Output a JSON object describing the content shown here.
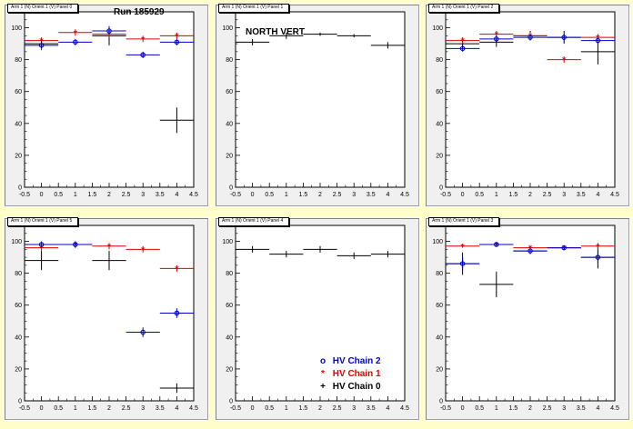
{
  "run_label": "Run 185929",
  "north_vert_label": "NORTH VERT",
  "colors": {
    "chain2": "#0000cc",
    "chain1": "#dd0000",
    "chain0": "#000000",
    "background": "#ffffcc"
  },
  "legend": [
    {
      "label": "HV Chain 2",
      "symbol": "o",
      "color": "#0000cc"
    },
    {
      "label": "HV Chain 1",
      "symbol": "*",
      "color": "#dd0000"
    },
    {
      "label": "HV Chain 0",
      "symbol": "+",
      "color": "#000000"
    }
  ],
  "chart_data": [
    {
      "type": "scatter",
      "title": "Arm 1 (N) Orient 1 (V) Panel 0",
      "xlim": [
        -0.5,
        4.5
      ],
      "ylim": [
        0,
        110
      ],
      "xticks": [
        "-0.5",
        "0",
        "0.5",
        "1",
        "1.5",
        "2",
        "2.5",
        "3",
        "3.5",
        "4",
        "4.5"
      ],
      "yticks": [
        "0",
        "20",
        "40",
        "60",
        "80",
        "100"
      ],
      "series": [
        {
          "name": "HV Chain 2",
          "x": [
            0,
            1,
            2,
            3,
            4
          ],
          "y": [
            89,
            91,
            98,
            83,
            91
          ],
          "yerr": [
            3,
            2,
            2,
            2,
            2
          ]
        },
        {
          "name": "HV Chain 1",
          "x": [
            0,
            1,
            2,
            3,
            4
          ],
          "y": [
            92,
            97,
            96,
            93,
            95
          ],
          "yerr": [
            2,
            2,
            2,
            2,
            2
          ]
        },
        {
          "name": "HV Chain 0",
          "x": [
            0,
            2,
            4
          ],
          "y": [
            90,
            95,
            42
          ],
          "yerr": [
            3,
            6,
            8
          ]
        }
      ]
    },
    {
      "type": "scatter",
      "title": "Arm 1 (N) Orient 1 (V) Panel 1",
      "xlim": [
        -0.5,
        4.5
      ],
      "ylim": [
        0,
        110
      ],
      "xticks": [
        "-0.5",
        "0",
        "0.5",
        "1",
        "1.5",
        "2",
        "2.5",
        "3",
        "3.5",
        "4",
        "4.5"
      ],
      "yticks": [
        "0",
        "20",
        "40",
        "60",
        "80",
        "100"
      ],
      "series": [
        {
          "name": "HV Chain 0",
          "x": [
            0,
            1,
            2,
            3,
            4
          ],
          "y": [
            91,
            95,
            96,
            95,
            89
          ],
          "yerr": [
            2,
            2,
            1,
            1,
            2
          ]
        }
      ]
    },
    {
      "type": "scatter",
      "title": "Arm 1 (N) Orient 1 (V) Panel 2",
      "xlim": [
        -0.5,
        4.5
      ],
      "ylim": [
        0,
        110
      ],
      "xticks": [
        "-0.5",
        "0",
        "0.5",
        "1",
        "1.5",
        "2",
        "2.5",
        "3",
        "3.5",
        "4",
        "4.5"
      ],
      "yticks": [
        "0",
        "20",
        "40",
        "60",
        "80",
        "100"
      ],
      "series": [
        {
          "name": "HV Chain 2",
          "x": [
            0,
            1,
            2,
            3,
            4
          ],
          "y": [
            87,
            93,
            94,
            94,
            92
          ],
          "yerr": [
            2,
            2,
            2,
            2,
            2
          ]
        },
        {
          "name": "HV Chain 1",
          "x": [
            0,
            1,
            2,
            3,
            4
          ],
          "y": [
            92,
            96,
            95,
            80,
            94
          ],
          "yerr": [
            2,
            2,
            2,
            2,
            2
          ]
        },
        {
          "name": "HV Chain 0",
          "x": [
            0,
            1,
            2,
            3,
            4
          ],
          "y": [
            90,
            91,
            95,
            94,
            85
          ],
          "yerr": [
            3,
            3,
            3,
            4,
            8
          ]
        }
      ]
    },
    {
      "type": "scatter",
      "title": "Arm 1 (N) Orient 1 (V) Panel 5",
      "xlim": [
        -0.5,
        4.5
      ],
      "ylim": [
        0,
        110
      ],
      "xticks": [
        "-0.5",
        "0",
        "0.5",
        "1",
        "1.5",
        "2",
        "2.5",
        "3",
        "3.5",
        "4",
        "4.5"
      ],
      "yticks": [
        "0",
        "20",
        "40",
        "60",
        "80",
        "100"
      ],
      "series": [
        {
          "name": "HV Chain 2",
          "x": [
            0,
            1,
            3,
            4
          ],
          "y": [
            98,
            98,
            43,
            55
          ],
          "yerr": [
            2,
            2,
            3,
            3
          ]
        },
        {
          "name": "HV Chain 1",
          "x": [
            0,
            1,
            2,
            3,
            4
          ],
          "y": [
            96,
            98,
            97,
            95,
            83
          ],
          "yerr": [
            2,
            2,
            2,
            2,
            2
          ]
        },
        {
          "name": "HV Chain 0",
          "x": [
            0,
            2,
            4
          ],
          "y": [
            88,
            88,
            8
          ],
          "yerr": [
            6,
            6,
            3
          ]
        }
      ]
    },
    {
      "type": "scatter",
      "title": "Arm 1 (N) Orient 1 (V) Panel 4",
      "xlim": [
        -0.5,
        4.5
      ],
      "ylim": [
        0,
        110
      ],
      "xticks": [
        "-0.5",
        "0",
        "0.5",
        "1",
        "1.5",
        "2",
        "2.5",
        "3",
        "3.5",
        "4",
        "4.5"
      ],
      "yticks": [
        "0",
        "20",
        "40",
        "60",
        "80",
        "100"
      ],
      "series": [
        {
          "name": "HV Chain 0",
          "x": [
            0,
            1,
            2,
            3,
            4
          ],
          "y": [
            95,
            92,
            95,
            91,
            92
          ],
          "yerr": [
            2,
            2,
            2,
            2,
            2
          ]
        }
      ]
    },
    {
      "type": "scatter",
      "title": "Arm 1 (N) Orient 1 (V) Panel 3",
      "xlim": [
        -0.5,
        4.5
      ],
      "ylim": [
        0,
        110
      ],
      "xticks": [
        "-0.5",
        "0",
        "0.5",
        "1",
        "1.5",
        "2",
        "2.5",
        "3",
        "3.5",
        "4",
        "4.5"
      ],
      "yticks": [
        "0",
        "20",
        "40",
        "60",
        "80",
        "100"
      ],
      "series": [
        {
          "name": "HV Chain 2",
          "x": [
            0,
            1,
            2,
            3,
            4
          ],
          "y": [
            86,
            98,
            94,
            96,
            90
          ],
          "yerr": [
            4,
            1,
            2,
            1,
            4
          ]
        },
        {
          "name": "HV Chain 1",
          "x": [
            0,
            1,
            2,
            3,
            4
          ],
          "y": [
            97,
            98,
            96,
            96,
            97
          ],
          "yerr": [
            1,
            1,
            1,
            1,
            2
          ]
        },
        {
          "name": "HV Chain 0",
          "x": [
            0,
            1,
            2,
            3,
            4
          ],
          "y": [
            86,
            73,
            94,
            96,
            90
          ],
          "yerr": [
            7,
            8,
            2,
            1,
            7
          ]
        }
      ]
    }
  ]
}
